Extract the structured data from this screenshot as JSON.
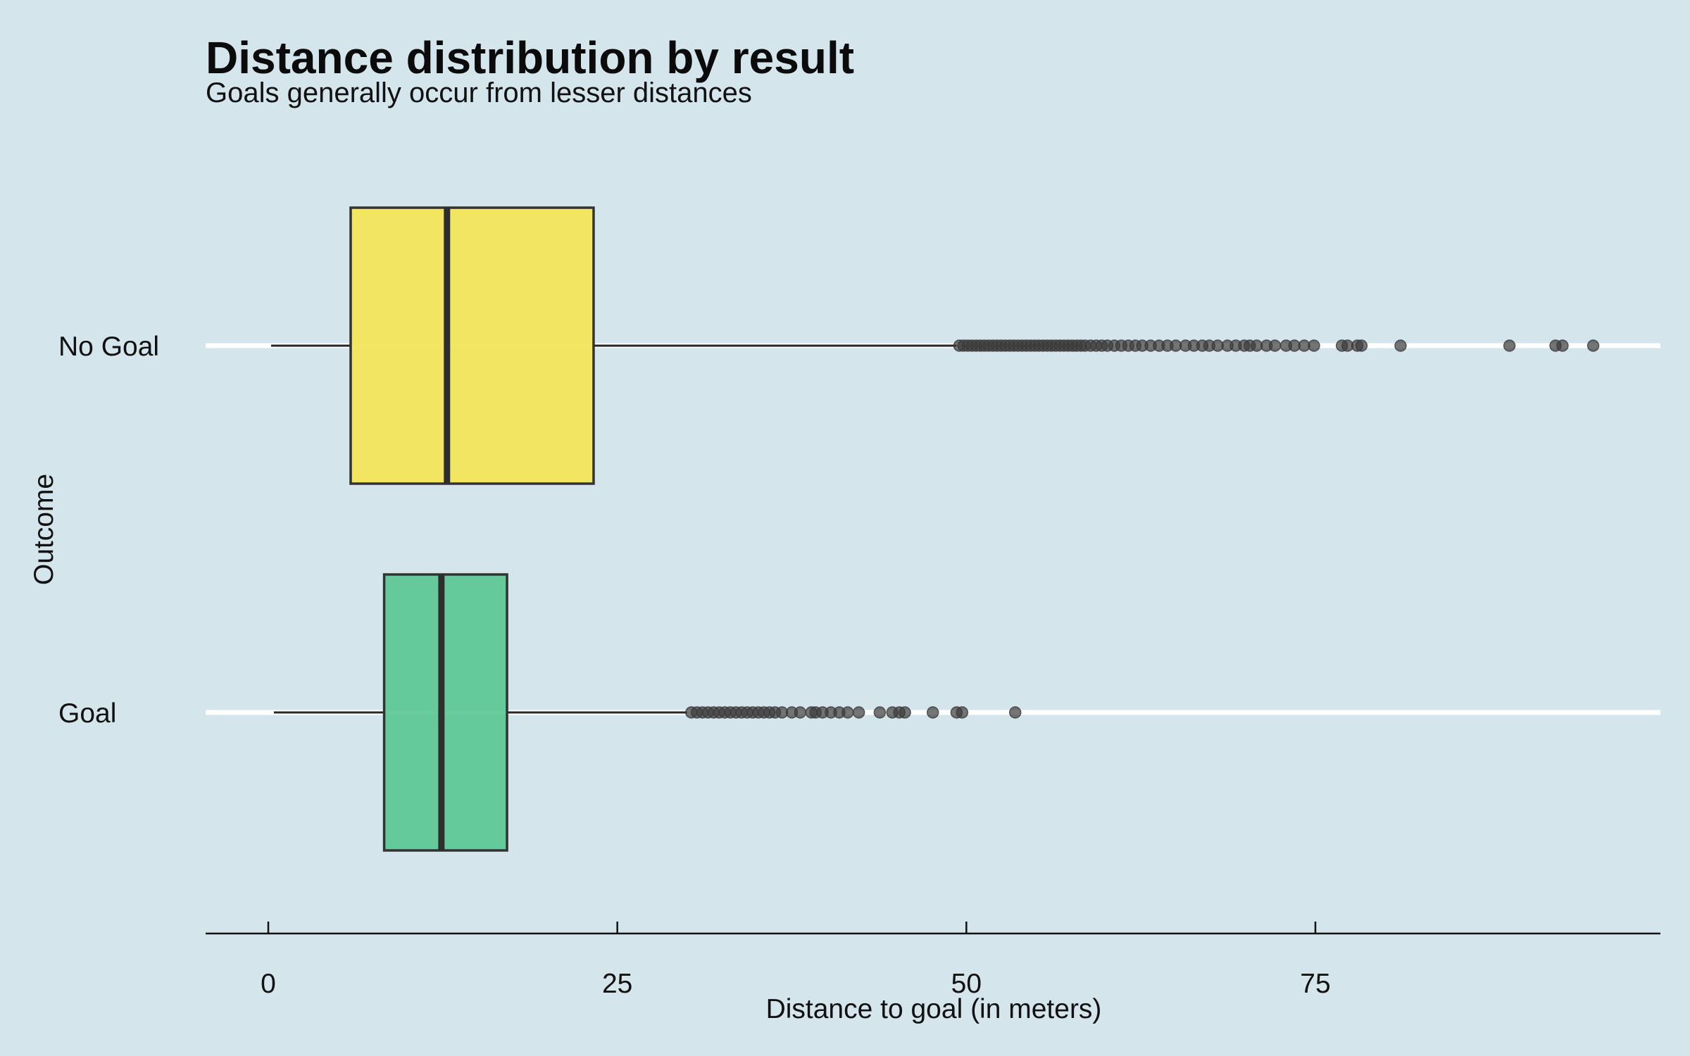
{
  "chart_data": {
    "type": "boxplot",
    "title": "Distance distribution by result",
    "subtitle": "Goals generally occur from lesser distances",
    "xlabel": "Distance to goal (in meters)",
    "ylabel": "Outcome",
    "xlim": [
      -1.7,
      99.3
    ],
    "xticks": [
      0,
      25,
      50,
      75
    ],
    "xtick_labels": [
      "0",
      "25",
      "50",
      "75"
    ],
    "grid": "horizontal lines at categories",
    "categories": [
      "No Goal",
      "Goal"
    ],
    "series": [
      {
        "category": "No Goal",
        "color": "#f2e55a",
        "whisker_low": 0.2,
        "q1": 5.9,
        "median": 12.8,
        "q3": 23.3,
        "whisker_high": 49.3,
        "outliers": [
          49.5,
          49.8,
          50.1,
          50.4,
          50.7,
          51.0,
          51.3,
          51.6,
          51.9,
          52.2,
          52.5,
          52.8,
          53.1,
          53.4,
          53.7,
          54.0,
          54.3,
          54.6,
          54.9,
          55.2,
          55.5,
          55.8,
          56.1,
          56.4,
          56.7,
          57.0,
          57.3,
          57.6,
          57.9,
          58.2,
          58.5,
          58.9,
          59.3,
          59.7,
          60.1,
          60.6,
          61.1,
          61.6,
          62.1,
          62.6,
          63.2,
          63.8,
          64.4,
          65.0,
          65.7,
          66.3,
          66.9,
          67.4,
          68.0,
          68.7,
          69.3,
          69.9,
          70.3,
          70.8,
          71.5,
          72.1,
          72.9,
          73.5,
          74.2,
          74.9,
          76.9,
          77.3,
          78.0,
          78.3,
          81.1,
          88.9,
          92.2,
          92.7,
          94.9
        ]
      },
      {
        "category": "Goal",
        "color": "#5fc897",
        "whisker_low": 0.4,
        "q1": 8.3,
        "median": 12.4,
        "q3": 17.1,
        "whisker_high": 30.0,
        "outliers": [
          30.3,
          30.7,
          31.1,
          31.5,
          31.9,
          32.3,
          32.7,
          33.1,
          33.5,
          33.9,
          34.3,
          34.7,
          35.1,
          35.5,
          35.9,
          36.3,
          36.8,
          37.5,
          38.1,
          38.9,
          39.2,
          39.7,
          40.3,
          40.9,
          41.5,
          42.3,
          43.8,
          44.7,
          45.2,
          45.6,
          47.6,
          49.3,
          49.7,
          53.5
        ]
      }
    ]
  }
}
